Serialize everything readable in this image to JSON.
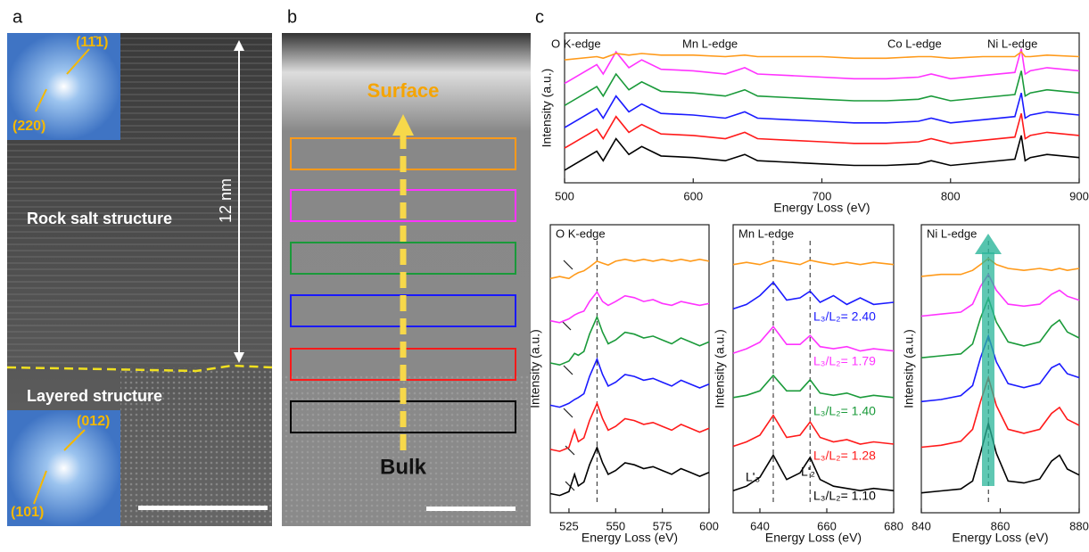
{
  "panels": {
    "a": "a",
    "b": "b",
    "c": "c"
  },
  "panel_a": {
    "fft_top": [
      "(11̄1)",
      "(220)"
    ],
    "rock_salt": "Rock salt structure",
    "scale": "12 nm",
    "layered": "Layered structure",
    "fft_bottom": [
      "(012)",
      "(101)"
    ]
  },
  "panel_b": {
    "surface": "Surface",
    "bulk": "Bulk"
  },
  "chart_data": [
    {
      "type": "line",
      "edge_labels": [
        "O K-edge",
        "Mn L-edge",
        "Co L-edge",
        "Ni L-edge"
      ],
      "x_label": "Energy Loss (eV)",
      "y_label": "Intensity (a.u.)",
      "xlim": [
        500,
        900
      ],
      "xticks": [
        500,
        600,
        700,
        800,
        900
      ],
      "ylim": [
        0,
        9.5
      ],
      "x": [
        500,
        525,
        530,
        540,
        550,
        560,
        575,
        600,
        625,
        640,
        650,
        675,
        700,
        725,
        750,
        775,
        785,
        800,
        825,
        850,
        855,
        858,
        862,
        875,
        900
      ],
      "series": [
        {
          "color": "#000000",
          "values": [
            0.8,
            2.0,
            1.4,
            2.8,
            1.8,
            2.3,
            1.7,
            1.6,
            1.4,
            1.8,
            1.4,
            1.3,
            1.2,
            1.1,
            1.1,
            1.2,
            1.4,
            1.1,
            1.3,
            1.5,
            3.0,
            1.4,
            1.6,
            1.8,
            1.6
          ]
        },
        {
          "color": "#ff1a1a",
          "values": [
            2.2,
            3.4,
            2.8,
            4.2,
            3.2,
            3.7,
            3.1,
            3.0,
            2.8,
            3.2,
            2.8,
            2.7,
            2.6,
            2.5,
            2.5,
            2.6,
            2.8,
            2.5,
            2.7,
            2.9,
            4.4,
            2.8,
            3.0,
            3.2,
            3.0
          ]
        },
        {
          "color": "#1a1aff",
          "values": [
            3.5,
            4.7,
            4.1,
            5.5,
            4.5,
            5.0,
            4.4,
            4.3,
            4.1,
            4.5,
            4.1,
            4.0,
            3.9,
            3.8,
            3.8,
            3.9,
            4.1,
            3.8,
            4.0,
            4.2,
            5.7,
            4.1,
            4.3,
            4.5,
            4.3
          ]
        },
        {
          "color": "#1a9a3a",
          "values": [
            4.9,
            6.1,
            5.5,
            6.9,
            5.9,
            6.4,
            5.8,
            5.7,
            5.5,
            5.9,
            5.5,
            5.4,
            5.3,
            5.2,
            5.2,
            5.3,
            5.5,
            5.2,
            5.4,
            5.6,
            7.1,
            5.5,
            5.7,
            5.9,
            5.7
          ]
        },
        {
          "color": "#ff33ff",
          "values": [
            6.3,
            7.5,
            6.9,
            8.3,
            7.3,
            7.8,
            7.2,
            7.1,
            6.9,
            7.3,
            6.9,
            6.8,
            6.7,
            6.6,
            6.6,
            6.7,
            6.9,
            6.6,
            6.8,
            7.0,
            8.5,
            6.9,
            7.1,
            7.3,
            7.1
          ]
        },
        {
          "color": "#ff9a1a",
          "values": [
            7.8,
            8.0,
            7.9,
            8.2,
            8.1,
            8.2,
            8.1,
            8.1,
            8.0,
            8.1,
            8.0,
            8.0,
            8.0,
            7.9,
            7.9,
            8.0,
            8.0,
            7.9,
            8.0,
            8.0,
            8.3,
            8.0,
            8.0,
            8.1,
            8.0
          ]
        }
      ]
    },
    {
      "type": "line",
      "title": "O K-edge",
      "x_label": "Energy Loss (eV)",
      "y_label": "Intensity (a.u.)",
      "xlim": [
        515,
        600
      ],
      "xticks": [
        525,
        550,
        575,
        600
      ],
      "ylim": [
        0,
        15
      ],
      "dashed_x": [
        540
      ],
      "x": [
        515,
        520,
        525,
        528,
        530,
        533,
        536,
        540,
        543,
        546,
        550,
        555,
        560,
        565,
        570,
        575,
        580,
        585,
        590,
        595,
        600
      ],
      "series": [
        {
          "color": "#000000",
          "values": [
            1,
            0.9,
            1.1,
            2,
            1.4,
            1.6,
            2.5,
            3.4,
            2.6,
            2,
            2.2,
            2.6,
            2.5,
            2.3,
            2.4,
            2.2,
            2,
            2.3,
            2.1,
            1.9,
            2.1
          ]
        },
        {
          "color": "#ff1a1a",
          "values": [
            3.3,
            3.2,
            3.4,
            4.3,
            3.7,
            3.9,
            4.8,
            5.7,
            4.9,
            4.3,
            4.5,
            4.9,
            4.8,
            4.6,
            4.7,
            4.5,
            4.3,
            4.6,
            4.4,
            4.2,
            4.4
          ]
        },
        {
          "color": "#1a1aff",
          "values": [
            5.6,
            5.5,
            5.7,
            5.9,
            6.0,
            6.2,
            7.1,
            8.0,
            7.2,
            6.6,
            6.8,
            7.2,
            7.1,
            6.9,
            7.0,
            6.8,
            6.6,
            6.9,
            6.7,
            6.5,
            6.7
          ]
        },
        {
          "color": "#1a9a3a",
          "values": [
            7.8,
            7.7,
            7.9,
            8.3,
            8.2,
            8.4,
            9.3,
            10.2,
            9.4,
            8.8,
            9.0,
            9.4,
            9.3,
            9.1,
            9.2,
            9.0,
            8.8,
            9.1,
            8.9,
            8.7,
            8.9
          ]
        },
        {
          "color": "#ff33ff",
          "values": [
            10,
            9.9,
            10.1,
            10.3,
            10.4,
            10.5,
            11.0,
            11.5,
            11.0,
            10.8,
            11.0,
            11.3,
            11.2,
            11.0,
            11.1,
            10.9,
            10.8,
            11.0,
            10.9,
            10.8,
            10.9
          ]
        },
        {
          "color": "#ff9a1a",
          "values": [
            12.2,
            12.3,
            12.2,
            12.4,
            12.5,
            12.6,
            12.8,
            13.1,
            13.0,
            12.9,
            13.1,
            13.2,
            13.1,
            13.2,
            13.1,
            13.2,
            13.1,
            13.2,
            13.1,
            13.2,
            13.1
          ]
        }
      ]
    },
    {
      "type": "line",
      "title": "Mn L-edge",
      "x_label": "Energy Loss (eV)",
      "y_label": "Intensity (a.u.)",
      "xlim": [
        632,
        680
      ],
      "xticks": [
        640,
        660,
        680
      ],
      "ylim": [
        0,
        13
      ],
      "dashed_x": [
        644,
        655
      ],
      "x": [
        632,
        636,
        640,
        644,
        648,
        652,
        655,
        658,
        662,
        666,
        670,
        674,
        680
      ],
      "series": [
        {
          "color": "#000000",
          "values": [
            1,
            1.2,
            1.6,
            2.6,
            1.5,
            1.8,
            2.5,
            1.5,
            1.2,
            1.1,
            1.0,
            1.1,
            1.0
          ]
        },
        {
          "color": "#ff1a1a",
          "values": [
            3,
            3.2,
            3.5,
            4.4,
            3.4,
            3.5,
            4.1,
            3.4,
            3.2,
            3.3,
            3.1,
            3.2,
            3.1
          ]
        },
        {
          "color": "#1a9a3a",
          "values": [
            5.2,
            5.3,
            5.5,
            6.2,
            5.5,
            5.5,
            6.0,
            5.4,
            5.3,
            5.4,
            5.2,
            5.3,
            5.2
          ]
        },
        {
          "color": "#ff33ff",
          "values": [
            7.2,
            7.4,
            7.7,
            8.4,
            7.6,
            7.6,
            8.0,
            7.5,
            7.4,
            7.5,
            7.3,
            7.4,
            7.3
          ]
        },
        {
          "color": "#1a1aff",
          "values": [
            9.2,
            9.4,
            9.8,
            10.4,
            9.6,
            9.7,
            10.0,
            9.5,
            9.8,
            9.4,
            9.7,
            9.4,
            9.5
          ]
        },
        {
          "color": "#ff9a1a",
          "values": [
            11.2,
            11.3,
            11.2,
            11.4,
            11.3,
            11.2,
            11.4,
            11.3,
            11.2,
            11.3,
            11.2,
            11.3,
            11.2
          ]
        }
      ],
      "annotations": [
        {
          "text": "L₃/L₂= 2.40",
          "color": "#1a1aff"
        },
        {
          "text": "L₃/L₂= 1.79",
          "color": "#ff33ff"
        },
        {
          "text": "L₃/L₂= 1.40",
          "color": "#1a9a3a"
        },
        {
          "text": "L₃/L₂= 1.28",
          "color": "#ff1a1a"
        },
        {
          "text": "L₃/L₂= 1.10",
          "color": "#000000"
        },
        {
          "text": "L'₃",
          "color": "#000000"
        },
        {
          "text": "L'₂",
          "color": "#000000"
        }
      ]
    },
    {
      "type": "line",
      "title": "Ni L-edge",
      "x_label": "Energy Loss (eV)",
      "y_label": "Intensity (a.u.)",
      "xlim": [
        840,
        880
      ],
      "xticks": [
        840,
        860,
        880
      ],
      "ylim": [
        0,
        14.5
      ],
      "dashed_x": [
        857
      ],
      "x": [
        840,
        845,
        850,
        853,
        855,
        857,
        859,
        862,
        866,
        870,
        873,
        875,
        877,
        880
      ],
      "series": [
        {
          "color": "#000000",
          "values": [
            1,
            1.1,
            1.2,
            1.6,
            3,
            4.5,
            3,
            1.6,
            1.5,
            1.7,
            2.6,
            2.9,
            2.2,
            1.9
          ]
        },
        {
          "color": "#ff1a1a",
          "values": [
            3.3,
            3.4,
            3.6,
            4.2,
            5.6,
            6.8,
            5.4,
            4.2,
            4.0,
            4.2,
            5.0,
            5.3,
            4.7,
            4.4
          ]
        },
        {
          "color": "#1a1aff",
          "values": [
            5.6,
            5.7,
            5.9,
            6.4,
            7.8,
            8.9,
            7.6,
            6.5,
            6.3,
            6.5,
            7.3,
            7.5,
            7.0,
            6.8
          ]
        },
        {
          "color": "#1a9a3a",
          "values": [
            7.8,
            7.9,
            8.0,
            8.5,
            9.8,
            10.8,
            9.6,
            8.6,
            8.4,
            8.6,
            9.4,
            9.7,
            9.1,
            8.8
          ]
        },
        {
          "color": "#ff33ff",
          "values": [
            9.9,
            10.0,
            10.1,
            10.5,
            11.4,
            12.0,
            11.2,
            10.5,
            10.4,
            10.5,
            11.0,
            11.2,
            10.9,
            10.7
          ]
        },
        {
          "color": "#ff9a1a",
          "values": [
            11.9,
            12.0,
            12.0,
            12.2,
            12.5,
            12.8,
            12.5,
            12.3,
            12.2,
            12.3,
            12.2,
            12.3,
            12.2,
            12.3
          ]
        }
      ]
    }
  ]
}
